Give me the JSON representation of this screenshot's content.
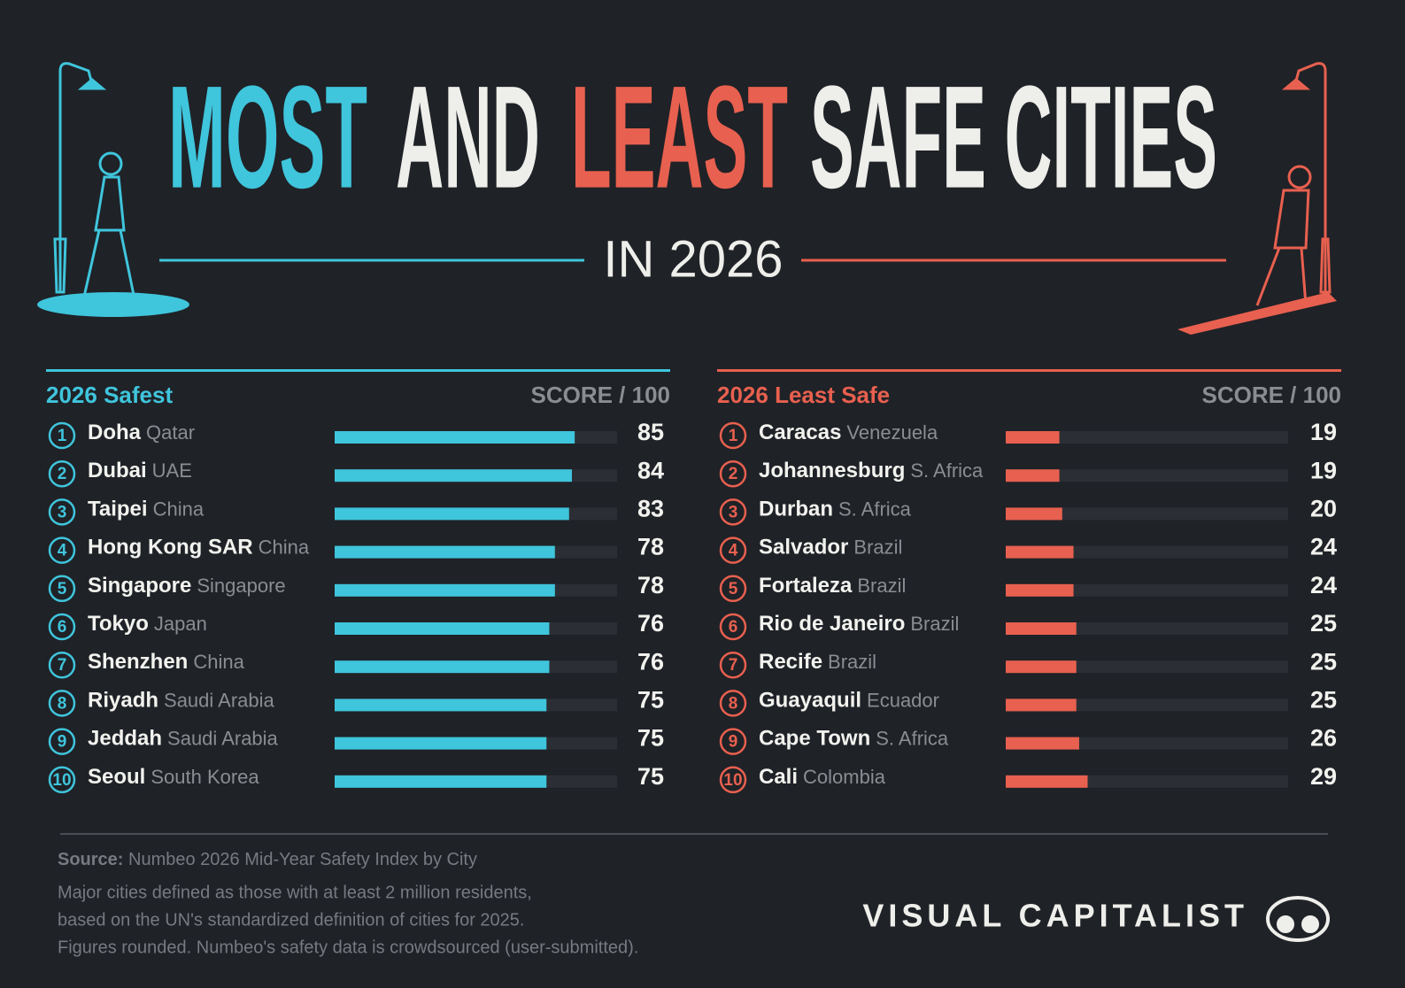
{
  "title": {
    "parts": [
      {
        "text": "MOST",
        "color": "#3fc5dc"
      },
      {
        "text": "AND",
        "color": "#eeeeea"
      },
      {
        "text": "LEAST",
        "color": "#e8604f"
      },
      {
        "text": "SAFE CITIES",
        "color": "#eeeeea"
      }
    ],
    "subtitle": "IN 2026"
  },
  "chart_data": [
    {
      "type": "bar",
      "orientation": "horizontal",
      "title": "2026 Safest",
      "value_axis_label": "SCORE / 100",
      "color": "#3fc5dc",
      "xlim": [
        0,
        100
      ],
      "ranks": [
        1,
        2,
        3,
        4,
        5,
        6,
        7,
        8,
        9,
        10
      ],
      "categories": [
        "Doha",
        "Dubai",
        "Taipei",
        "Hong Kong SAR",
        "Singapore",
        "Tokyo",
        "Shenzhen",
        "Riyadh",
        "Jeddah",
        "Seoul"
      ],
      "countries": [
        "Qatar",
        "UAE",
        "China",
        "China",
        "Singapore",
        "Japan",
        "China",
        "Saudi Arabia",
        "Saudi Arabia",
        "South Korea"
      ],
      "values": [
        85,
        84,
        83,
        78,
        78,
        76,
        76,
        75,
        75,
        75
      ]
    },
    {
      "type": "bar",
      "orientation": "horizontal",
      "title": "2026 Least Safe",
      "value_axis_label": "SCORE / 100",
      "color": "#e8604f",
      "xlim": [
        0,
        100
      ],
      "ranks": [
        1,
        2,
        3,
        4,
        5,
        6,
        7,
        8,
        9,
        10
      ],
      "categories": [
        "Caracas",
        "Johannesburg",
        "Durban",
        "Salvador",
        "Fortaleza",
        "Rio de Janeiro",
        "Recife",
        "Guayaquil",
        "Cape Town",
        "Cali"
      ],
      "countries": [
        "Venezuela",
        "S. Africa",
        "S. Africa",
        "Brazil",
        "Brazil",
        "Brazil",
        "Brazil",
        "Ecuador",
        "S. Africa",
        "Colombia"
      ],
      "values": [
        19,
        19,
        20,
        24,
        24,
        25,
        25,
        25,
        26,
        29
      ]
    }
  ],
  "footer": {
    "source_label": "Source:",
    "source": "Numbeo 2026 Mid-Year Safety Index by City",
    "notes": [
      "Major cities defined as those with at least 2 million residents,",
      "based on the UN's standardized definition of cities for 2025.",
      "Figures rounded. Numbeo's safety data is crowdsourced (user-submitted)."
    ],
    "brand": "VISUAL CAPITALIST"
  }
}
